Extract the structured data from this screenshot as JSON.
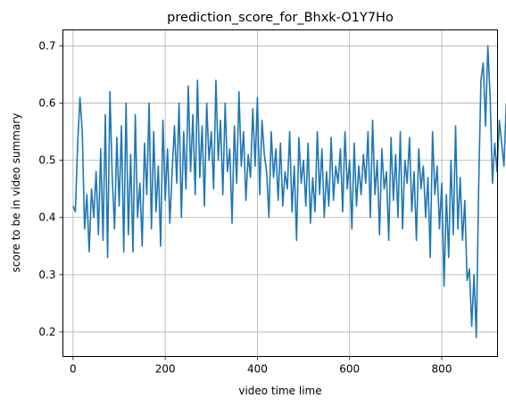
{
  "chart_data": {
    "type": "line",
    "title": "prediction_score_for_Bhxk-O1Y7Ho",
    "xlabel": "video time lime",
    "ylabel": "score to be in video summary",
    "xlim": [
      -22,
      921
    ],
    "ylim": [
      0.157,
      0.728
    ],
    "xticks": [
      0,
      200,
      400,
      600,
      800
    ],
    "xtick_labels": [
      "0",
      "200",
      "400",
      "600",
      "800"
    ],
    "yticks": [
      0.2,
      0.3,
      0.4,
      0.5,
      0.6,
      0.7
    ],
    "ytick_labels": [
      "0.2",
      "0.3",
      "0.4",
      "0.5",
      "0.6",
      "0.7"
    ],
    "grid": true,
    "series": [
      {
        "color": "#1f77b4",
        "x_start": 0,
        "x_step": 5,
        "values": [
          0.42,
          0.41,
          0.53,
          0.61,
          0.55,
          0.38,
          0.44,
          0.34,
          0.45,
          0.4,
          0.48,
          0.37,
          0.52,
          0.36,
          0.58,
          0.33,
          0.62,
          0.47,
          0.38,
          0.54,
          0.42,
          0.56,
          0.34,
          0.6,
          0.37,
          0.51,
          0.34,
          0.58,
          0.4,
          0.46,
          0.35,
          0.53,
          0.44,
          0.6,
          0.38,
          0.55,
          0.41,
          0.49,
          0.35,
          0.57,
          0.43,
          0.52,
          0.39,
          0.48,
          0.56,
          0.46,
          0.6,
          0.4,
          0.55,
          0.45,
          0.63,
          0.48,
          0.58,
          0.44,
          0.64,
          0.47,
          0.56,
          0.42,
          0.6,
          0.5,
          0.55,
          0.45,
          0.64,
          0.5,
          0.57,
          0.44,
          0.6,
          0.48,
          0.52,
          0.39,
          0.56,
          0.46,
          0.62,
          0.49,
          0.55,
          0.43,
          0.51,
          0.47,
          0.59,
          0.49,
          0.61,
          0.44,
          0.57,
          0.51,
          0.48,
          0.4,
          0.55,
          0.47,
          0.52,
          0.43,
          0.53,
          0.42,
          0.48,
          0.45,
          0.55,
          0.41,
          0.49,
          0.36,
          0.54,
          0.46,
          0.5,
          0.42,
          0.53,
          0.39,
          0.47,
          0.41,
          0.55,
          0.44,
          0.52,
          0.4,
          0.48,
          0.42,
          0.54,
          0.43,
          0.49,
          0.46,
          0.52,
          0.41,
          0.55,
          0.45,
          0.5,
          0.38,
          0.53,
          0.42,
          0.49,
          0.44,
          0.51,
          0.46,
          0.55,
          0.4,
          0.57,
          0.44,
          0.5,
          0.37,
          0.52,
          0.45,
          0.48,
          0.36,
          0.54,
          0.43,
          0.51,
          0.4,
          0.55,
          0.38,
          0.5,
          0.46,
          0.54,
          0.41,
          0.48,
          0.36,
          0.52,
          0.45,
          0.49,
          0.4,
          0.47,
          0.33,
          0.55,
          0.44,
          0.49,
          0.38,
          0.46,
          0.28,
          0.44,
          0.33,
          0.5,
          0.37,
          0.56,
          0.38,
          0.47,
          0.36,
          0.43,
          0.29,
          0.31,
          0.21,
          0.3,
          0.19,
          0.45,
          0.64,
          0.67,
          0.56,
          0.7,
          0.61,
          0.46,
          0.53,
          0.48,
          0.57,
          0.53,
          0.49,
          0.6
        ]
      }
    ]
  }
}
